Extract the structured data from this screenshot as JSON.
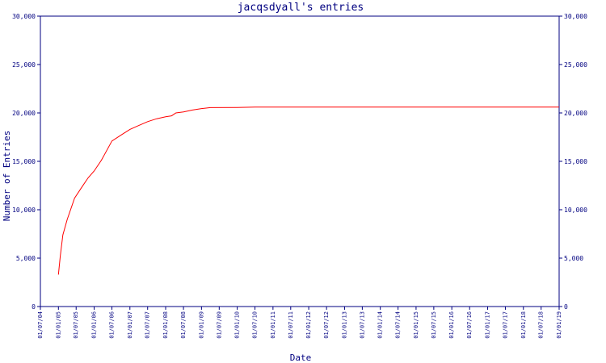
{
  "chart_data": {
    "type": "line",
    "title": "jacqsdyall's entries",
    "xlabel": "Date",
    "ylabel": "Number of Entries",
    "ylim": [
      0,
      30000
    ],
    "y_ticks": [
      "0",
      "5,000",
      "10,000",
      "15,000",
      "20,000",
      "25,000",
      "30,000"
    ],
    "x_ticks": [
      "01/07/04",
      "01/01/05",
      "01/07/05",
      "01/01/06",
      "01/07/06",
      "01/01/07",
      "01/07/07",
      "01/01/08",
      "01/07/08",
      "01/01/09",
      "01/07/09",
      "01/01/10",
      "01/07/10",
      "01/01/11",
      "01/07/11",
      "01/01/12",
      "01/07/12",
      "01/01/13",
      "01/07/13",
      "01/01/14",
      "01/07/14",
      "01/01/15",
      "01/07/15",
      "01/01/16",
      "01/07/16",
      "01/01/17",
      "01/07/17",
      "01/01/18",
      "01/07/18",
      "01/01/19"
    ],
    "grid": false,
    "colors": {
      "line": "#ff0000",
      "axis": "#000080",
      "text": "#000080"
    },
    "series": [
      {
        "values": [
          [
            "2005-01-01",
            3300
          ],
          [
            "2005-01-20",
            5200
          ],
          [
            "2005-02-15",
            7400
          ],
          [
            "2005-04-01",
            9000
          ],
          [
            "2005-06-15",
            11200
          ],
          [
            "2005-09-01",
            12400
          ],
          [
            "2005-11-01",
            13300
          ],
          [
            "2006-01-01",
            14000
          ],
          [
            "2006-03-15",
            15100
          ],
          [
            "2006-07-01",
            17100
          ],
          [
            "2006-10-01",
            17700
          ],
          [
            "2007-01-01",
            18300
          ],
          [
            "2007-04-01",
            18700
          ],
          [
            "2007-07-01",
            19100
          ],
          [
            "2007-10-01",
            19400
          ],
          [
            "2008-01-01",
            19600
          ],
          [
            "2008-03-01",
            19700
          ],
          [
            "2008-04-15",
            20000
          ],
          [
            "2008-07-01",
            20100
          ],
          [
            "2008-10-01",
            20300
          ],
          [
            "2009-01-01",
            20450
          ],
          [
            "2009-04-01",
            20550
          ],
          [
            "2010-01-01",
            20560
          ],
          [
            "2010-07-01",
            20600
          ],
          [
            "2019-01-01",
            20600
          ]
        ]
      }
    ]
  }
}
